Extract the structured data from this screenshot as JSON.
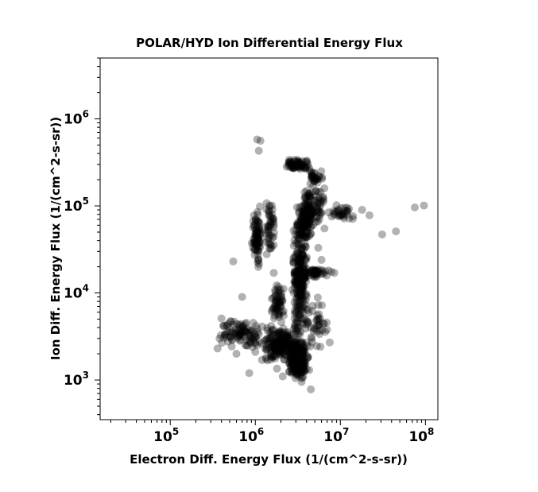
{
  "chart_data": {
    "type": "scatter",
    "title": "POLAR/HYD  Ion Differential Energy Flux",
    "xlabel": "Electron Diff. Energy Flux (1/(cm^2-s-sr))",
    "ylabel": "Ion Diff. Energy Flux (1/(cm^2-s-sr))",
    "xscale": "log",
    "yscale": "log",
    "xlim": [
      15000,
      140000000
    ],
    "ylim": [
      350,
      5000000
    ],
    "x_ticks": [
      {
        "base": "10",
        "exp": "5",
        "value": 100000
      },
      {
        "base": "10",
        "exp": "6",
        "value": 1000000
      },
      {
        "base": "10",
        "exp": "7",
        "value": 10000000
      },
      {
        "base": "10",
        "exp": "8",
        "value": 100000000
      }
    ],
    "y_ticks": [
      {
        "base": "10",
        "exp": "3",
        "value": 1000
      },
      {
        "base": "10",
        "exp": "4",
        "value": 10000
      },
      {
        "base": "10",
        "exp": "5",
        "value": 100000
      },
      {
        "base": "10",
        "exp": "6",
        "value": 1000000
      }
    ],
    "grid": false,
    "marker_color": "#000000",
    "marker_alpha": 0.3,
    "clusters": [
      {
        "x_range": [
          2300000,
          4200000
        ],
        "y_range": [
          1000,
          3000
        ],
        "n": 300
      },
      {
        "x_range": [
          1200000,
          3200000
        ],
        "y_range": [
          1600,
          4200
        ],
        "n": 180
      },
      {
        "x_range": [
          500000,
          1300000
        ],
        "y_range": [
          2200,
          5000
        ],
        "n": 70
      },
      {
        "x_range": [
          350000,
          700000
        ],
        "y_range": [
          2300,
          5000
        ],
        "n": 30
      },
      {
        "x_range": [
          2700000,
          4200000
        ],
        "y_range": [
          3000,
          70000
        ],
        "n": 260
      },
      {
        "x_range": [
          3000000,
          5000000
        ],
        "y_range": [
          30000,
          150000
        ],
        "n": 120
      },
      {
        "x_range": [
          3500000,
          7000000
        ],
        "y_range": [
          60000,
          200000
        ],
        "n": 80
      },
      {
        "x_range": [
          2200000,
          4500000
        ],
        "y_range": [
          250000,
          350000
        ],
        "n": 70
      },
      {
        "x_range": [
          4000000,
          6500000
        ],
        "y_range": [
          170000,
          280000
        ],
        "n": 30
      },
      {
        "x_range": [
          900000,
          1200000
        ],
        "y_range": [
          16000,
          100000
        ],
        "n": 90
      },
      {
        "x_range": [
          1300000,
          1700000
        ],
        "y_range": [
          25000,
          120000
        ],
        "n": 50
      },
      {
        "x_range": [
          1500000,
          2200000
        ],
        "y_range": [
          4500,
          14000
        ],
        "n": 60
      },
      {
        "x_range": [
          3500000,
          8000000
        ],
        "y_range": [
          15000,
          19000
        ],
        "n": 50
      },
      {
        "x_range": [
          3800000,
          7500000
        ],
        "y_range": [
          2200,
          9000
        ],
        "n": 40
      },
      {
        "x_range": [
          7000000,
          16000000
        ],
        "y_range": [
          70000,
          100000
        ],
        "n": 30
      }
    ],
    "points": [
      [
        1050000,
        580000
      ],
      [
        1150000,
        560000
      ],
      [
        1100000,
        430000
      ],
      [
        550000,
        23000
      ],
      [
        2800000,
        22000
      ],
      [
        1650000,
        17000
      ],
      [
        700000,
        9000
      ],
      [
        850000,
        1200
      ],
      [
        4500000,
        780
      ],
      [
        3500000,
        950
      ],
      [
        1800000,
        1350
      ],
      [
        2100000,
        1100
      ],
      [
        4300000,
        1300
      ],
      [
        5200000,
        4800
      ],
      [
        7500000,
        2700
      ],
      [
        22000000,
        78000
      ],
      [
        31000000,
        47000
      ],
      [
        45000000,
        51000
      ],
      [
        75000000,
        96000
      ],
      [
        96000000,
        101000
      ],
      [
        18000000,
        90000
      ],
      [
        12000000,
        88000
      ],
      [
        14000000,
        71000
      ],
      [
        11000000,
        72000
      ],
      [
        9000000,
        102000
      ],
      [
        6500000,
        55000
      ],
      [
        5500000,
        33000
      ],
      [
        8500000,
        17000
      ],
      [
        6000000,
        24000
      ],
      [
        650000,
        3300
      ],
      [
        420000,
        4200
      ],
      [
        380000,
        3000
      ],
      [
        360000,
        2300
      ],
      [
        400000,
        5100
      ],
      [
        600000,
        2000
      ],
      [
        1000000,
        2100
      ],
      [
        1200000,
        1700
      ]
    ]
  }
}
